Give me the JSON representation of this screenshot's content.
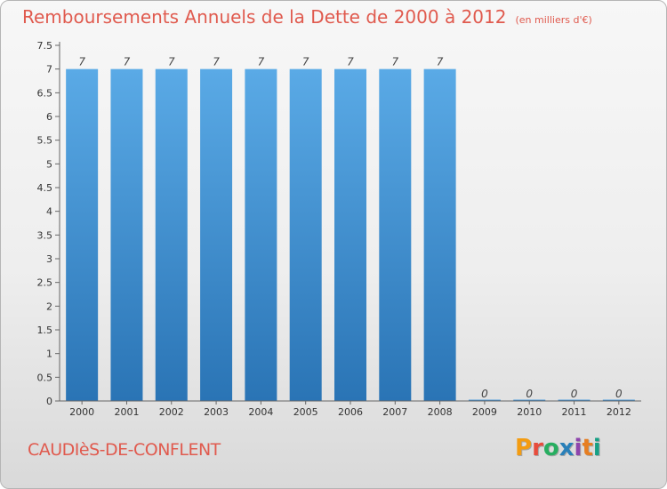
{
  "header": {
    "title": "Remboursements Annuels de la Dette de 2000 à 2012",
    "subtitle": "(en milliers d'€)"
  },
  "footer": {
    "commune": "CAUDIèS-DE-CONFLENT",
    "logo": "Proxiti"
  },
  "colors": {
    "title": "#e05a4e",
    "bar_light": "#5aaae6",
    "bar_dark": "#2a74b5",
    "logo": [
      "#f39c12",
      "#e74c3c",
      "#27ae60",
      "#2980b9",
      "#8e44ad",
      "#e67e22",
      "#16a085"
    ]
  },
  "chart_data": {
    "type": "bar",
    "categories": [
      "2000",
      "2001",
      "2002",
      "2003",
      "2004",
      "2005",
      "2006",
      "2007",
      "2008",
      "2009",
      "2010",
      "2011",
      "2012"
    ],
    "values": [
      7,
      7,
      7,
      7,
      7,
      7,
      7,
      7,
      7,
      0,
      0,
      0,
      0
    ],
    "data_labels": [
      "7",
      "7",
      "7",
      "7",
      "7",
      "7",
      "7",
      "7",
      "7",
      "0",
      "0",
      "0",
      "0"
    ],
    "ylim": [
      0,
      7.5
    ],
    "yticks": [
      "0",
      "0.5",
      "1",
      "1.5",
      "2",
      "2.5",
      "3",
      "3.5",
      "4",
      "4.5",
      "5",
      "5.5",
      "6",
      "6.5",
      "7",
      "7.5"
    ],
    "grid": false
  }
}
